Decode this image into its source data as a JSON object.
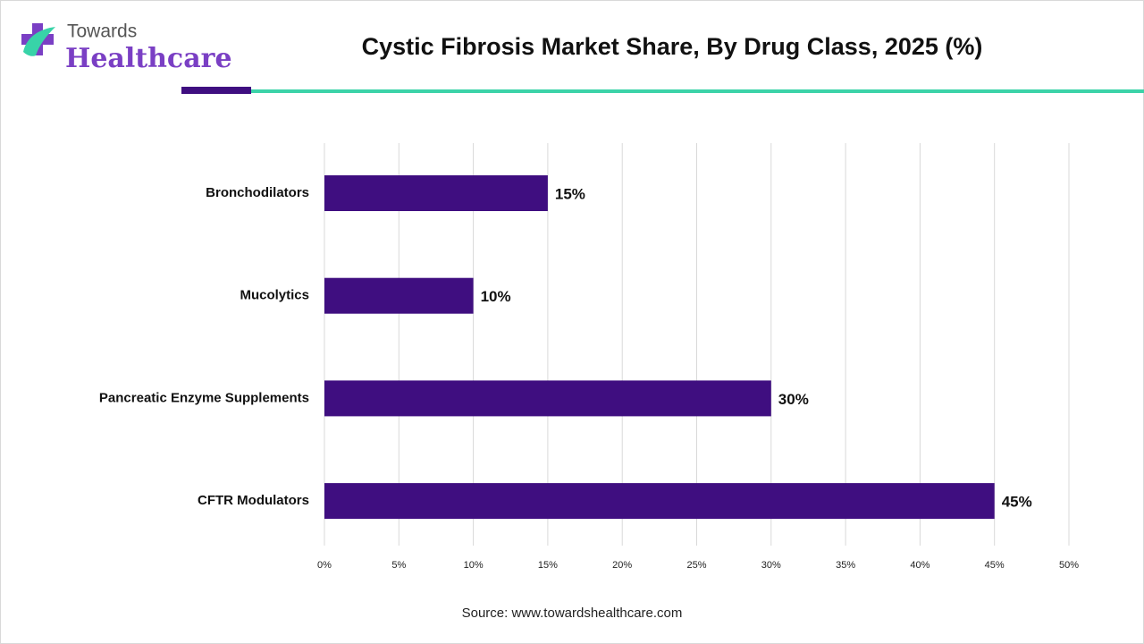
{
  "logo": {
    "line1": "Towards",
    "line2": "Healthcare"
  },
  "chart_data": {
    "type": "bar",
    "orientation": "horizontal",
    "title": "Cystic Fibrosis Market Share, By Drug Class, 2025 (%)",
    "categories": [
      "Bronchodilators",
      "Mucolytics",
      "Pancreatic Enzyme Supplements",
      "CFTR Modulators"
    ],
    "values": [
      15,
      10,
      30,
      45
    ],
    "value_labels": [
      "15%",
      "10%",
      "30%",
      "45%"
    ],
    "color": "#3f0e80",
    "xlim": [
      0,
      50
    ],
    "xticks": [
      {
        "value": 0,
        "label": "0%"
      },
      {
        "value": 5,
        "label": "5%"
      },
      {
        "value": 10,
        "label": "10%"
      },
      {
        "value": 15,
        "label": "15%"
      },
      {
        "value": 20,
        "label": "20%"
      },
      {
        "value": 25,
        "label": "25%"
      },
      {
        "value": 30,
        "label": "30%"
      },
      {
        "value": 35,
        "label": "35%"
      },
      {
        "value": 40,
        "label": "40%"
      },
      {
        "value": 45,
        "label": "45%"
      },
      {
        "value": 50,
        "label": "50%"
      }
    ],
    "grid": true,
    "source": "Source: www.towardshealthcare.com"
  }
}
